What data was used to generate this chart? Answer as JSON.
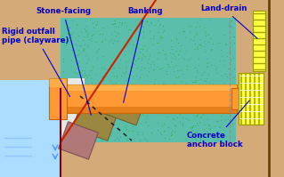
{
  "fig_w": 3.19,
  "fig_h": 1.99,
  "dpi": 100,
  "bg_color": "#d4aa78",
  "water_color": "#aaddff",
  "teal_color": "#5abeaa",
  "pipe_color": "#ff9933",
  "label_color": "#0000cc",
  "annotations": {
    "stone_facing": "Stone-facing",
    "banking": "Banking",
    "land_drain": "Land-drain",
    "rigid_outfall": "Rigid outfall\npipe (clayware)",
    "concrete_anchor": "Concrete\nanchor block"
  }
}
